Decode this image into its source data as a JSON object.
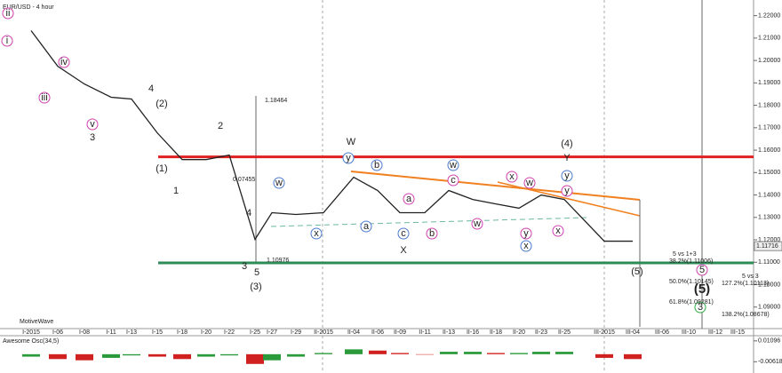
{
  "chart_data": [
    {
      "type": "line",
      "title": "EUR/USD - 4 hour",
      "watermark": "MotiveWave",
      "categories": [
        "I-2015",
        "I-06",
        "I-08",
        "I-11",
        "I-13",
        "I-15",
        "I-18",
        "I-20",
        "I-22",
        "I-25",
        "I-27",
        "I-29",
        "II-2015",
        "II-04",
        "II-06",
        "II-09",
        "II-11",
        "II-13",
        "II-16",
        "II-18",
        "II-20",
        "II-23",
        "II-25",
        "III-2015",
        "III-04",
        "III-06",
        "III-10",
        "III-12",
        "III-15"
      ],
      "values": [
        1.2133,
        1.1974,
        1.1895,
        1.1836,
        1.1828,
        1.1677,
        1.1558,
        1.1558,
        1.1578,
        1.1202,
        1.1321,
        1.1313,
        1.1321,
        1.1479,
        1.142,
        1.1321,
        1.1321,
        1.142,
        1.138,
        1.136,
        1.1341,
        1.14,
        1.138,
        1.1194,
        1.1194,
        null,
        null,
        null,
        null
      ],
      "color": "#222222",
      "ylim": [
        1.08,
        1.225
      ],
      "yticks": [
        {
          "value": 1.22,
          "label": "1.22000"
        },
        {
          "value": 1.21,
          "label": "1.21000"
        },
        {
          "value": 1.2,
          "label": "1.20000"
        },
        {
          "value": 1.19,
          "label": "1.19000"
        },
        {
          "value": 1.18,
          "label": "1.18000"
        },
        {
          "value": 1.17,
          "label": "1.17000"
        },
        {
          "value": 1.16,
          "label": "1.16000"
        },
        {
          "value": 1.15,
          "label": "1.15000"
        },
        {
          "value": 1.14,
          "label": "1.14000"
        },
        {
          "value": 1.13,
          "label": "1.13000"
        },
        {
          "value": 1.12,
          "label": "1.12000"
        },
        {
          "value": 1.11,
          "label": "1.11000"
        },
        {
          "value": 1.1,
          "label": "1.10000"
        },
        {
          "value": 1.09,
          "label": "1.09000"
        }
      ],
      "last_price": {
        "value": 1.11716,
        "label": "1.11716"
      },
      "levels": [
        {
          "value": 1.157,
          "color": "#e02020"
        },
        {
          "value": 1.1097,
          "color": "#2e8b57"
        }
      ],
      "annotations": [
        {
          "text": "ii",
          "color": "#d040b0",
          "circled": true
        },
        {
          "text": "i",
          "color": "#d040b0",
          "circled": true
        },
        {
          "text": "iv",
          "color": "#d040b0",
          "circled": true
        },
        {
          "text": "iii",
          "color": "#d040b0",
          "circled": true
        },
        {
          "text": "v",
          "color": "#d040b0",
          "circled": true
        },
        {
          "text": "3",
          "color": "#d040b0",
          "circled": false
        },
        {
          "text": "4",
          "color": "#d040b0",
          "circled": false
        },
        {
          "text": "(2)",
          "color": "#6a1b6a",
          "circled": false
        },
        {
          "text": "2",
          "color": "#3a9a7a",
          "circled": false
        },
        {
          "text": "(1)",
          "color": "#6a1b6a",
          "circled": false
        },
        {
          "text": "1",
          "color": "#3a9a7a",
          "circled": false
        },
        {
          "text": "4",
          "color": "#3a9a7a",
          "circled": false
        },
        {
          "text": "3",
          "color": "#3a9a7a",
          "circled": false
        },
        {
          "text": "5",
          "color": "#3a9a7a",
          "circled": false
        },
        {
          "text": "(3)",
          "color": "#6a1b6a",
          "circled": false
        },
        {
          "text": "W",
          "color": "#2e8b57",
          "circled": false
        },
        {
          "text": "X",
          "color": "#2e8b57",
          "circled": false
        },
        {
          "text": "(4)",
          "color": "#6a1b6a",
          "circled": false
        },
        {
          "text": "Y",
          "color": "#3a9a7a",
          "circled": false
        },
        {
          "text": "w",
          "color": "#4a7ad0",
          "circled": true
        },
        {
          "text": "x",
          "color": "#4a7ad0",
          "circled": true
        },
        {
          "text": "y",
          "color": "#4a7ad0",
          "circled": true
        },
        {
          "text": "a",
          "color": "#4a7ad0",
          "circled": true
        },
        {
          "text": "b",
          "color": "#4a7ad0",
          "circled": true
        },
        {
          "text": "c",
          "color": "#4a7ad0",
          "circled": true
        },
        {
          "text": "w",
          "color": "#4a7ad0",
          "circled": true
        },
        {
          "text": "x",
          "color": "#4a7ad0",
          "circled": true
        },
        {
          "text": "y",
          "color": "#4a7ad0",
          "circled": true
        },
        {
          "text": "a",
          "color": "#d040b0",
          "circled": true
        },
        {
          "text": "b",
          "color": "#d040b0",
          "circled": true
        },
        {
          "text": "c",
          "color": "#d040b0",
          "circled": true
        },
        {
          "text": "w",
          "color": "#d040b0",
          "circled": true
        },
        {
          "text": "x",
          "color": "#d040b0",
          "circled": true
        },
        {
          "text": "w",
          "color": "#d040b0",
          "circled": true
        },
        {
          "text": "y",
          "color": "#d040b0",
          "circled": true
        },
        {
          "text": "x",
          "color": "#d040b0",
          "circled": true
        },
        {
          "text": "y",
          "color": "#d040b0",
          "circled": true
        },
        {
          "text": "(5)",
          "color": "#6a1b6a",
          "circled": false
        },
        {
          "text": "5",
          "color": "#d040b0",
          "circled": true
        },
        {
          "text": "(5)",
          "color": "#1a1aa0",
          "circled": false
        },
        {
          "text": "3",
          "color": "#2eaa40",
          "circled": true
        },
        {
          "text": "5 vs 1+3",
          "color": "#111111",
          "circled": false
        },
        {
          "text": "5 vs 3",
          "color": "#111111",
          "circled": false
        },
        {
          "text": "38.2%(1.11006)",
          "color": "#111111",
          "circled": false
        },
        {
          "text": "50.0%(1.10145)",
          "color": "#111111",
          "circled": false
        },
        {
          "text": "61.8%(1.09281)",
          "color": "#111111",
          "circled": false
        },
        {
          "text": "127.2%(1.10113)",
          "color": "#111111",
          "circled": false
        },
        {
          "text": "138.2%(1.08678)",
          "color": "#111111",
          "circled": false
        },
        {
          "text": "0.07455",
          "color": "#111111",
          "circled": false
        },
        {
          "text": "1.18464",
          "color": "#111111",
          "circled": false
        },
        {
          "text": "1.10976",
          "color": "#111111",
          "circled": false
        }
      ]
    },
    {
      "type": "bar",
      "title": "Awesome Osc(34,5)",
      "values": [
        -0.002,
        -0.004,
        -0.005,
        -0.003,
        -0.001,
        -0.002,
        -0.004,
        -0.002,
        -0.001,
        -0.008,
        -0.005,
        -0.002,
        0.001,
        0.004,
        0.003,
        0.001,
        0.0,
        0.002,
        0.002,
        0.001,
        0.001,
        0.002,
        0.002,
        -0.003,
        -0.004,
        null,
        null,
        null,
        null
      ],
      "up_color": "#2a9a3a",
      "down_color": "#d02020",
      "ylim": [
        -0.014,
        0.0145
      ],
      "yticks": [
        {
          "value": 0.01096,
          "label": "0.01096"
        },
        {
          "value": -0.00618,
          "label": "-0.00618"
        }
      ]
    }
  ]
}
